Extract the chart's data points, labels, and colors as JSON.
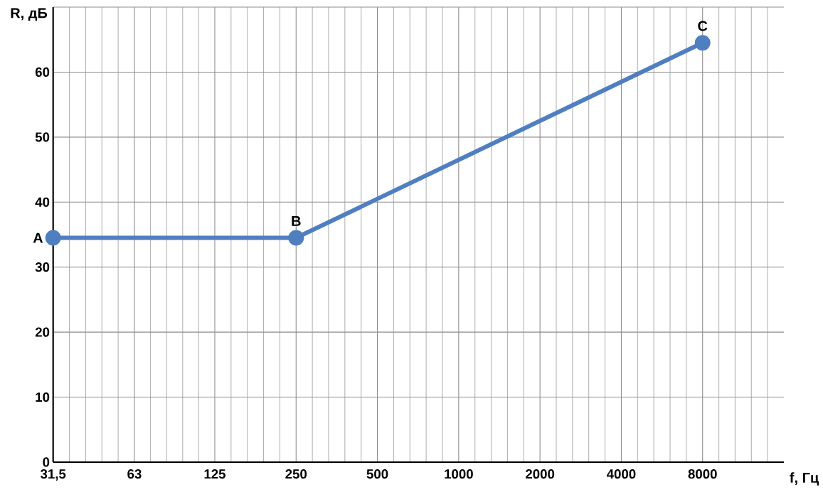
{
  "chart_data": {
    "type": "line",
    "xlabel": "f, Гц",
    "ylabel": "R, дБ",
    "log": "x",
    "x": [
      31.5,
      250,
      8000
    ],
    "series": [
      {
        "color": "#4f7fc0",
        "values": [
          34.5,
          34.5,
          64.5
        ]
      }
    ],
    "xlim": [
      31.5,
      16000
    ],
    "xticks": [
      {
        "value": 31.5,
        "label": "31,5"
      },
      63,
      125,
      250,
      500,
      1000,
      2000,
      4000,
      8000
    ],
    "ylim": [
      0,
      70
    ],
    "yticks": [
      0,
      10,
      20,
      30,
      40,
      50,
      60,
      {
        "value": 70,
        "label": null
      }
    ],
    "grid": true,
    "marker": "circle",
    "line_style": "solid",
    "annotations": [
      {
        "text": "A",
        "x": 31.5,
        "y": 34.5
      },
      {
        "text": "B",
        "x": 250,
        "y": 34.5
      },
      {
        "text": "C",
        "x": 8000,
        "y": 64.5
      }
    ]
  }
}
